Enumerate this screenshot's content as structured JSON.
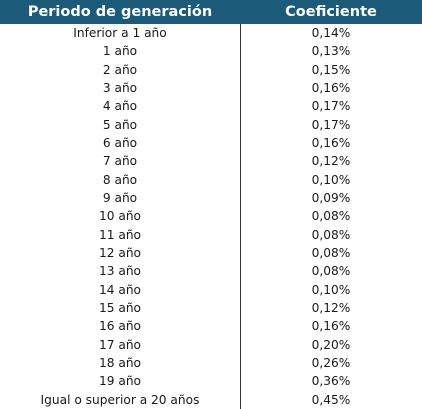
{
  "table": {
    "headers": {
      "period": "Periodo de generación",
      "coefficient": "Coeficiente"
    },
    "rows": [
      {
        "period": "Inferior a 1 año",
        "coefficient": "0,14%"
      },
      {
        "period": "1 año",
        "coefficient": "0,13%"
      },
      {
        "period": "2 año",
        "coefficient": "0,15%"
      },
      {
        "period": "3 año",
        "coefficient": "0,16%"
      },
      {
        "period": "4 año",
        "coefficient": "0,17%"
      },
      {
        "period": "5 año",
        "coefficient": "0,17%"
      },
      {
        "period": "6 año",
        "coefficient": "0,16%"
      },
      {
        "period": "7 año",
        "coefficient": "0,12%"
      },
      {
        "period": "8 año",
        "coefficient": "0,10%"
      },
      {
        "period": "9 año",
        "coefficient": "0,09%"
      },
      {
        "period": "10 año",
        "coefficient": "0,08%"
      },
      {
        "period": "11 año",
        "coefficient": "0,08%"
      },
      {
        "period": "12 año",
        "coefficient": "0,08%"
      },
      {
        "period": "13 año",
        "coefficient": "0,08%"
      },
      {
        "period": "14 año",
        "coefficient": "0,10%"
      },
      {
        "period": "15 año",
        "coefficient": "0,12%"
      },
      {
        "period": "16 año",
        "coefficient": "0,16%"
      },
      {
        "period": "17 año",
        "coefficient": "0,20%"
      },
      {
        "period": "18 año",
        "coefficient": "0,26%"
      },
      {
        "period": "19 año",
        "coefficient": "0,36%"
      },
      {
        "period": "Igual o superior a 20 años",
        "coefficient": "0,45%"
      }
    ]
  },
  "colors": {
    "header_background": "#1b5a79",
    "header_text": "#ffffff",
    "divider": "#333333"
  }
}
